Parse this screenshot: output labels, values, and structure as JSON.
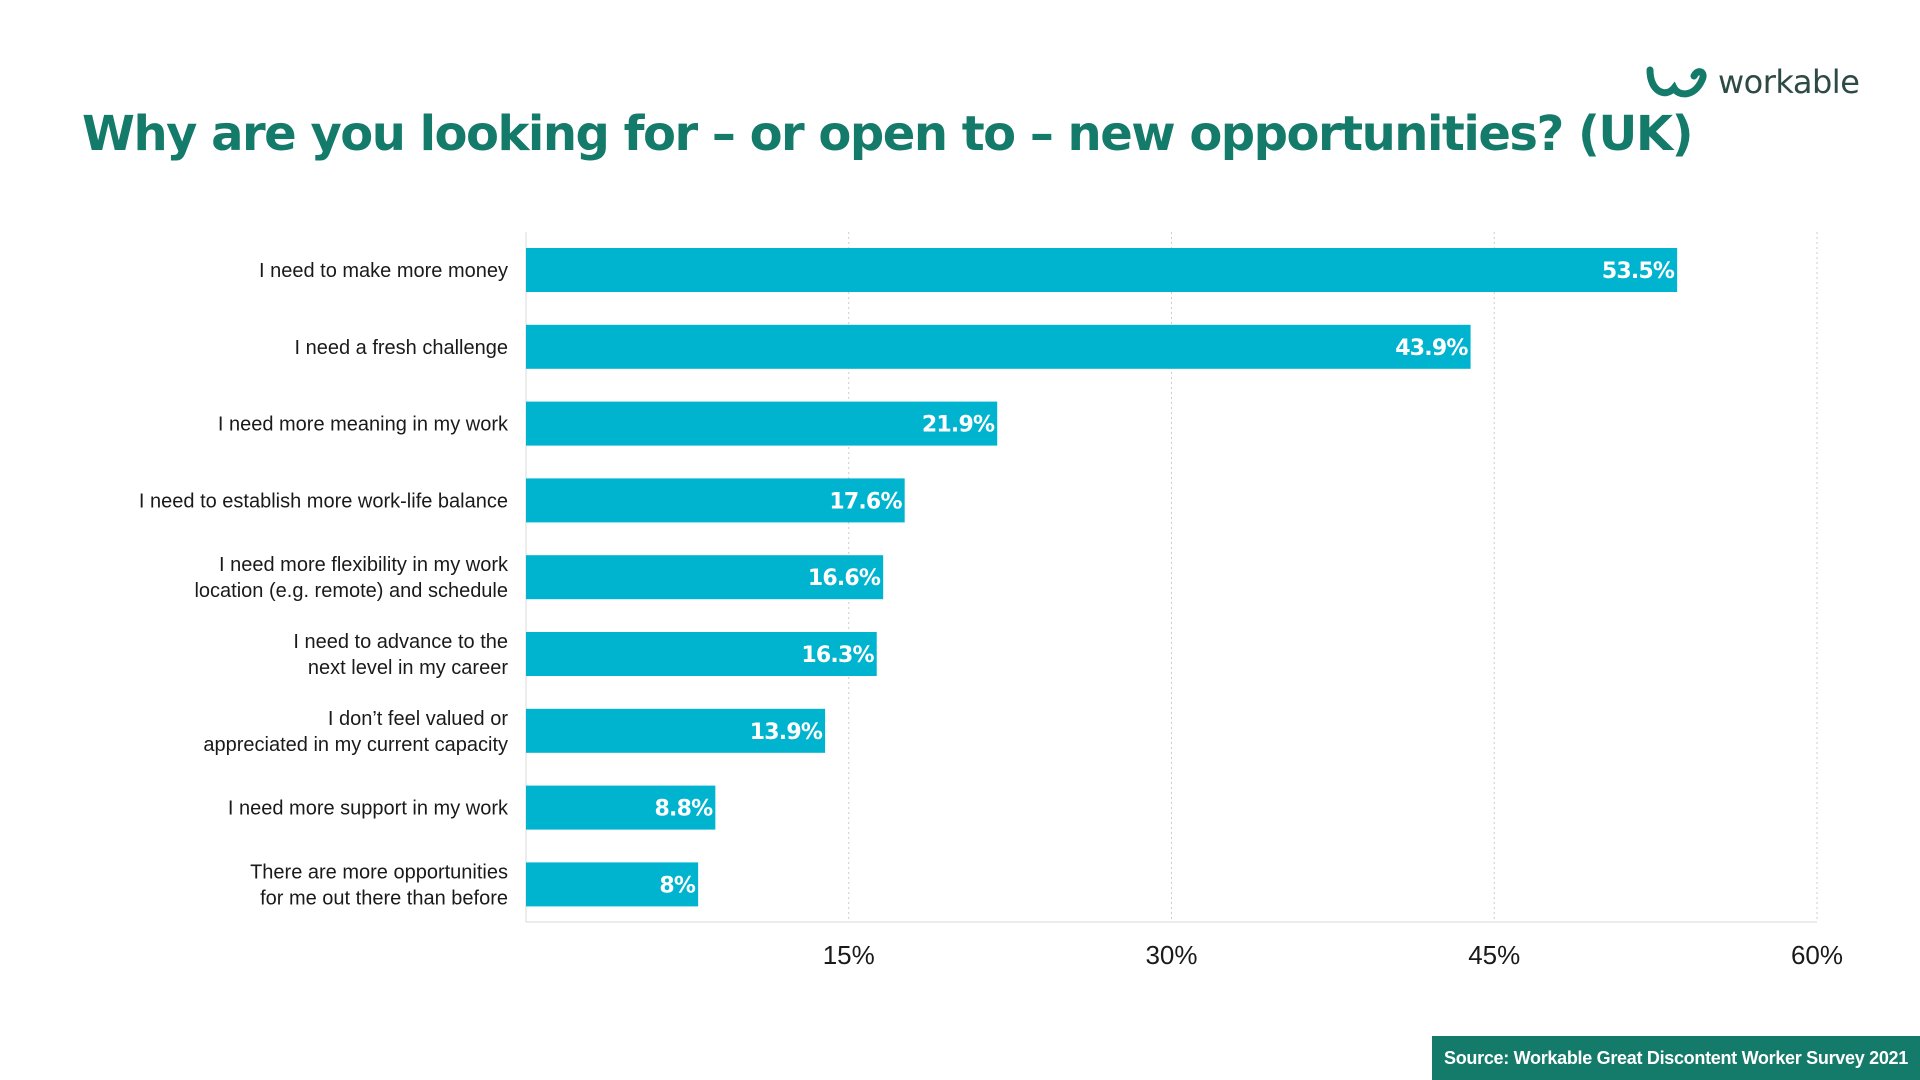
{
  "title": "Why are you looking for – or open to – new opportunities? (UK)",
  "logo": {
    "text": "workable",
    "icon": "workable-logo-icon",
    "color": "#147a6a"
  },
  "source": "Source: Workable Great Discontent Worker Survey 2021",
  "colors": {
    "bar": "#00b4cf",
    "title": "#147a6a",
    "source_bg": "#147a6a",
    "grid": "#cccccc"
  },
  "chart_data": {
    "type": "bar",
    "orientation": "horizontal",
    "title": "Why are you looking for – or open to – new opportunities? (UK)",
    "xlabel": "",
    "ylabel": "",
    "xlim": [
      0,
      60
    ],
    "xticks": [
      15,
      30,
      45,
      60
    ],
    "xtick_labels": [
      "15%",
      "30%",
      "45%",
      "60%"
    ],
    "grid": "vertical dotted",
    "legend": "none",
    "categories": [
      [
        "I need to make more money"
      ],
      [
        "I need a fresh challenge"
      ],
      [
        "I need more meaning in my work"
      ],
      [
        "I need to establish more work-life balance"
      ],
      [
        "I need more flexibility in my  work",
        "location (e.g. remote) and schedule"
      ],
      [
        "I need to advance to the",
        "next level in my career"
      ],
      [
        "I don’t feel valued or",
        "appreciated in my current capacity"
      ],
      [
        "I need more support in my work"
      ],
      [
        "There are more opportunities",
        "for me out there than before"
      ]
    ],
    "values": [
      53.5,
      43.9,
      21.9,
      17.6,
      16.6,
      16.3,
      13.9,
      8.8,
      8
    ],
    "value_labels": [
      "53.5%",
      "43.9%",
      "21.9%",
      "17.6%",
      "16.6%",
      "16.3%",
      "13.9%",
      "8.8%",
      "8%"
    ]
  }
}
